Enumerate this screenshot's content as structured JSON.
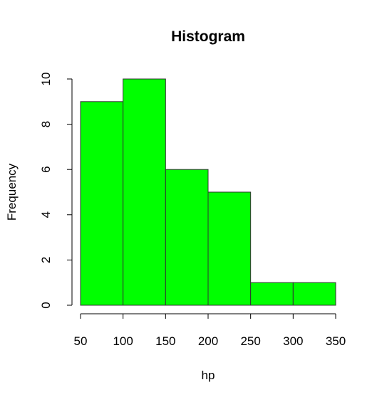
{
  "chart_data": {
    "type": "bar",
    "title": "Histogram",
    "xlabel": "hp",
    "ylabel": "Frequency",
    "bins": [
      {
        "start": 50,
        "end": 100,
        "count": 9
      },
      {
        "start": 100,
        "end": 150,
        "count": 10
      },
      {
        "start": 150,
        "end": 200,
        "count": 6
      },
      {
        "start": 200,
        "end": 250,
        "count": 5
      },
      {
        "start": 250,
        "end": 300,
        "count": 1
      },
      {
        "start": 300,
        "end": 350,
        "count": 1
      }
    ],
    "xlim": [
      50,
      350
    ],
    "ylim": [
      0,
      10
    ],
    "x_ticks": [
      50,
      100,
      150,
      200,
      250,
      300,
      350
    ],
    "y_ticks": [
      0,
      2,
      4,
      6,
      8,
      10
    ],
    "bar_color": "#00ff00",
    "grid": false,
    "legend": "none"
  }
}
